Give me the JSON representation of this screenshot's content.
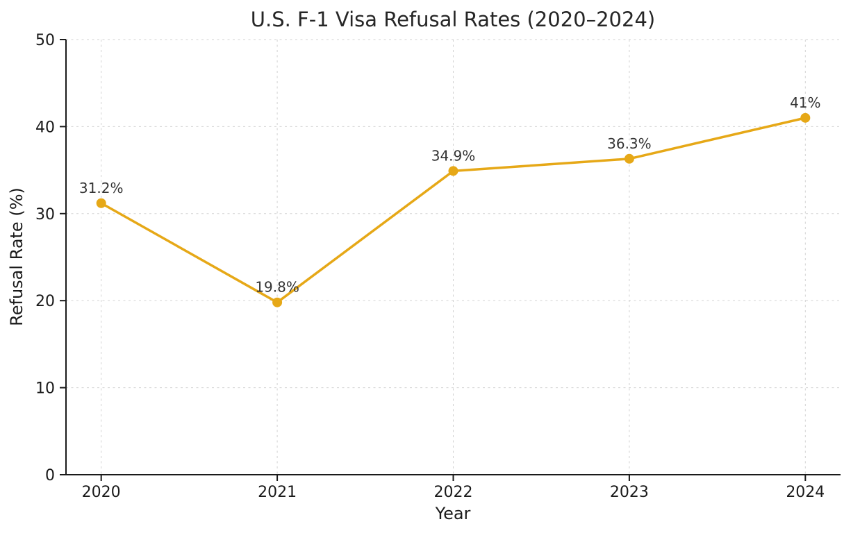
{
  "chart": {
    "title": "U.S. F-1 Visa Refusal Rates (2020–2024)",
    "xlabel": "Year",
    "ylabel": "Refusal Rate (%)"
  },
  "chart_data": {
    "type": "line",
    "title": "U.S. F-1 Visa Refusal Rates (2020–2024)",
    "xlabel": "Year",
    "ylabel": "Refusal Rate (%)",
    "x": [
      2020,
      2021,
      2022,
      2023,
      2024
    ],
    "x_tick_labels": [
      "2020",
      "2021",
      "2022",
      "2023",
      "2024"
    ],
    "values": [
      31.2,
      19.8,
      34.9,
      36.3,
      41
    ],
    "point_labels": [
      "31.2%",
      "19.8%",
      "34.9%",
      "36.3%",
      "41%"
    ],
    "ylim": [
      0,
      50
    ],
    "yticks": [
      0,
      10,
      20,
      30,
      40,
      50
    ],
    "grid": true,
    "grid_style": "dashed",
    "legend": "none",
    "line_color": "#E6A817",
    "marker_color": "#E6A817",
    "grid_color": "#d2d2d2",
    "spine_color": "#1a1a1a",
    "label_color": "#333333"
  }
}
